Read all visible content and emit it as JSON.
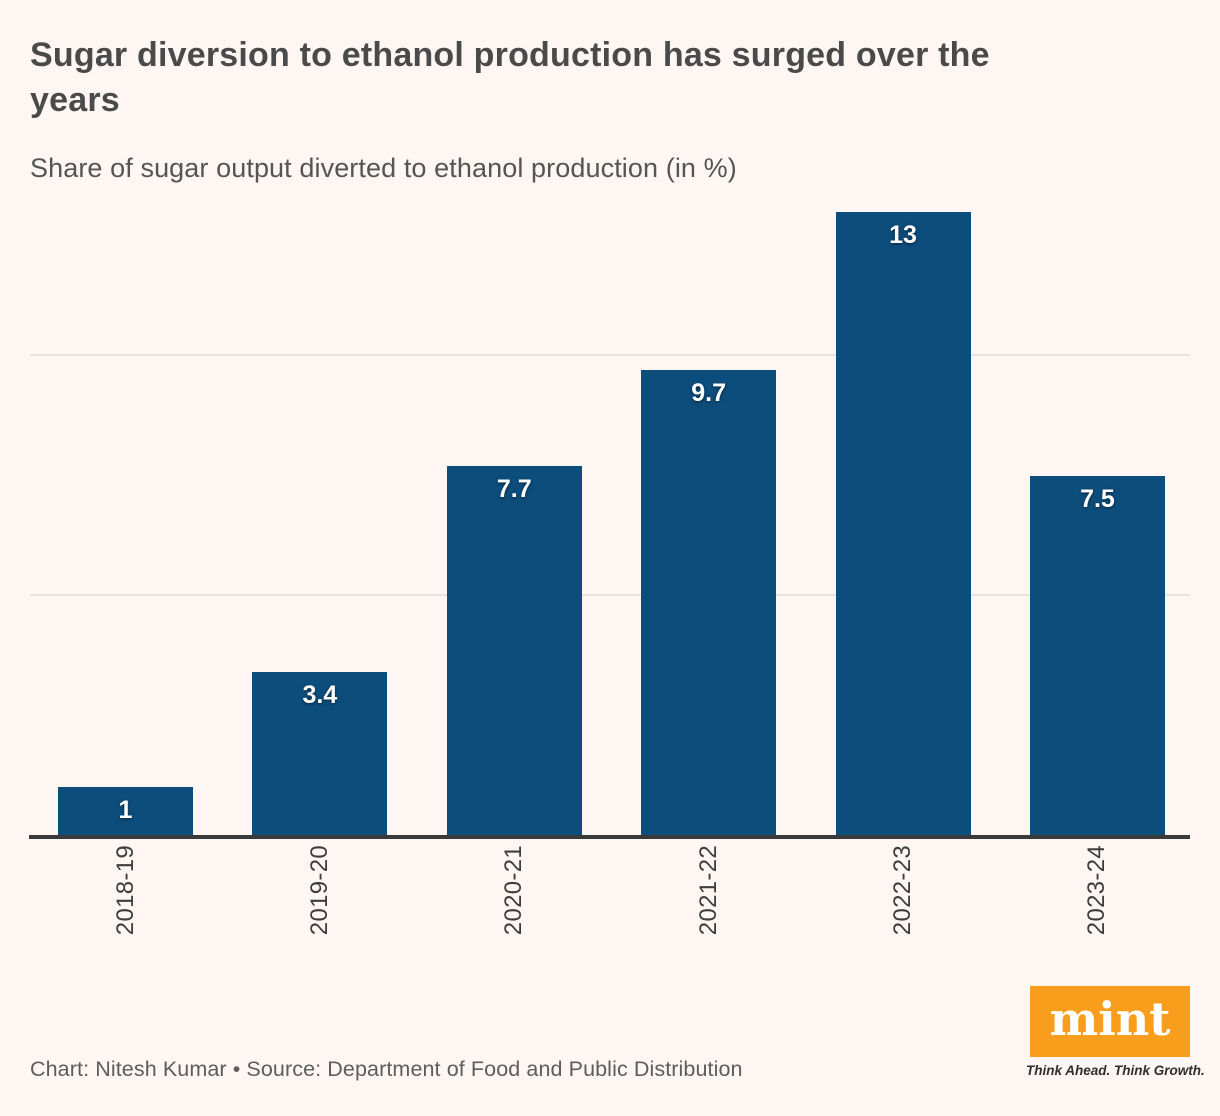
{
  "header": {
    "title": "Sugar diversion to ethanol production has surged over the\nyears",
    "subtitle": "Share of sugar output diverted to ethanol production (in %)"
  },
  "chart_data": {
    "type": "bar",
    "categories": [
      "2018-19",
      "2019-20",
      "2020-21",
      "2021-22",
      "2022-23",
      "2023-24"
    ],
    "values": [
      1,
      3.4,
      7.7,
      9.7,
      13,
      7.5
    ],
    "value_labels": [
      "1",
      "3.4",
      "7.7",
      "9.7",
      "13",
      "7.5"
    ],
    "title": "Sugar diversion to ethanol production has surged over the years",
    "ylabel": "Share of sugar output diverted to ethanol production (in %)",
    "xlabel": "",
    "ylim": [
      0,
      13.05
    ],
    "gridlines": [
      5,
      10
    ],
    "grid_on": true,
    "legend": "none",
    "bar_color": "#0d4d7c",
    "background_color": "#fdf6f3",
    "axis_color": "#3a3a3a",
    "gridline_color": "#e8e2df"
  },
  "footer": {
    "credit": "Chart: Nitesh Kumar • Source: Department of Food and Public Distribution"
  },
  "logo": {
    "text": "mint",
    "tagline": "Think Ahead. Think Growth.",
    "box_color": "#f89e1c"
  }
}
